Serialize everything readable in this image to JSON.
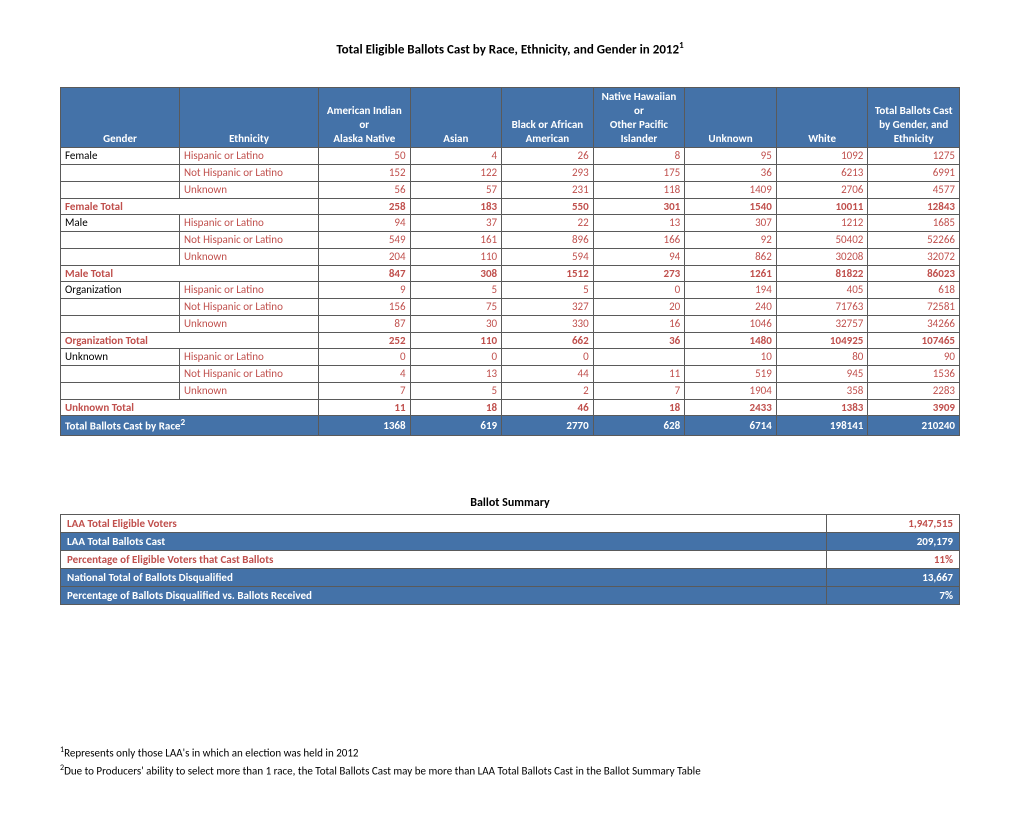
{
  "title_main": "Total Eligible Ballots Cast by Race, Ethnicity, and Gender in 2012",
  "title_sup": "1",
  "headers": {
    "gender": "Gender",
    "ethnicity": "Ethnicity",
    "c1a": "American Indian or",
    "c1b": "Alaska Native",
    "c2": "Asian",
    "c3a": "Black or African",
    "c3b": "American",
    "c4a": "Native Hawaiian or",
    "c4b": "Other Pacific",
    "c4c": "Islander",
    "c5": "Unknown",
    "c6": "White",
    "c7a": "Total Ballots Cast",
    "c7b": "by Gender, and",
    "c7c": "Ethnicity"
  },
  "groups": [
    {
      "label": "Female",
      "rows": [
        {
          "eth": "Hispanic or Latino",
          "v": [
            "50",
            "4",
            "26",
            "8",
            "95",
            "1092",
            "1275"
          ]
        },
        {
          "eth": "Not Hispanic or Latino",
          "v": [
            "152",
            "122",
            "293",
            "175",
            "36",
            "6213",
            "6991"
          ]
        },
        {
          "eth": "Unknown",
          "v": [
            "56",
            "57",
            "231",
            "118",
            "1409",
            "2706",
            "4577"
          ]
        }
      ],
      "subtotal": {
        "label": "Female Total",
        "v": [
          "258",
          "183",
          "550",
          "301",
          "1540",
          "10011",
          "12843"
        ]
      }
    },
    {
      "label": "Male",
      "rows": [
        {
          "eth": "Hispanic or Latino",
          "v": [
            "94",
            "37",
            "22",
            "13",
            "307",
            "1212",
            "1685"
          ]
        },
        {
          "eth": "Not Hispanic or Latino",
          "v": [
            "549",
            "161",
            "896",
            "166",
            "92",
            "50402",
            "52266"
          ]
        },
        {
          "eth": "Unknown",
          "v": [
            "204",
            "110",
            "594",
            "94",
            "862",
            "30208",
            "32072"
          ]
        }
      ],
      "subtotal": {
        "label": "Male Total",
        "v": [
          "847",
          "308",
          "1512",
          "273",
          "1261",
          "81822",
          "86023"
        ]
      }
    },
    {
      "label": "Organization",
      "rows": [
        {
          "eth": "Hispanic or Latino",
          "v": [
            "9",
            "5",
            "5",
            "0",
            "194",
            "405",
            "618"
          ]
        },
        {
          "eth": "Not Hispanic or Latino",
          "v": [
            "156",
            "75",
            "327",
            "20",
            "240",
            "71763",
            "72581"
          ]
        },
        {
          "eth": "Unknown",
          "v": [
            "87",
            "30",
            "330",
            "16",
            "1046",
            "32757",
            "34266"
          ]
        }
      ],
      "subtotal": {
        "label": "Organization Total",
        "v": [
          "252",
          "110",
          "662",
          "36",
          "1480",
          "104925",
          "107465"
        ]
      }
    },
    {
      "label": "Unknown",
      "rows": [
        {
          "eth": "Hispanic or Latino",
          "v": [
            "0",
            "0",
            "0",
            "",
            "10",
            "80",
            "90"
          ]
        },
        {
          "eth": "Not Hispanic or Latino",
          "v": [
            "4",
            "13",
            "44",
            "11",
            "519",
            "945",
            "1536"
          ]
        },
        {
          "eth": "Unknown",
          "v": [
            "7",
            "5",
            "2",
            "7",
            "1904",
            "358",
            "2283"
          ]
        }
      ],
      "subtotal": {
        "label": "Unknown Total",
        "v": [
          "11",
          "18",
          "46",
          "18",
          "2433",
          "1383",
          "3909"
        ]
      }
    }
  ],
  "grand": {
    "label": "Total Ballots Cast by Race",
    "sup": "2",
    "v": [
      "1368",
      "619",
      "2770",
      "628",
      "6714",
      "198141",
      "210240"
    ]
  },
  "summary_title": "Ballot Summary",
  "summary": [
    {
      "style": "light",
      "label": "LAA Total Eligible Voters",
      "val": "1,947,515"
    },
    {
      "style": "dark",
      "label": "LAA Total Ballots Cast",
      "val": "209,179"
    },
    {
      "style": "light",
      "label": "Percentage of Eligible Voters that Cast Ballots",
      "val": "11%"
    },
    {
      "style": "dark",
      "label": "National Total of Ballots Disqualified",
      "val": "13,667"
    },
    {
      "style": "dark",
      "label": "Percentage of Ballots Disqualified vs. Ballots Received",
      "val": "7%"
    }
  ],
  "footnote1_sup": "1",
  "footnote1": "Represents only those LAA's in which an election was held in 2012",
  "footnote2_sup": "2",
  "footnote2": "Due to Producers' ability to select more than 1 race, the Total Ballots Cast may be more than LAA Total Ballots Cast in the Ballot Summary Table"
}
